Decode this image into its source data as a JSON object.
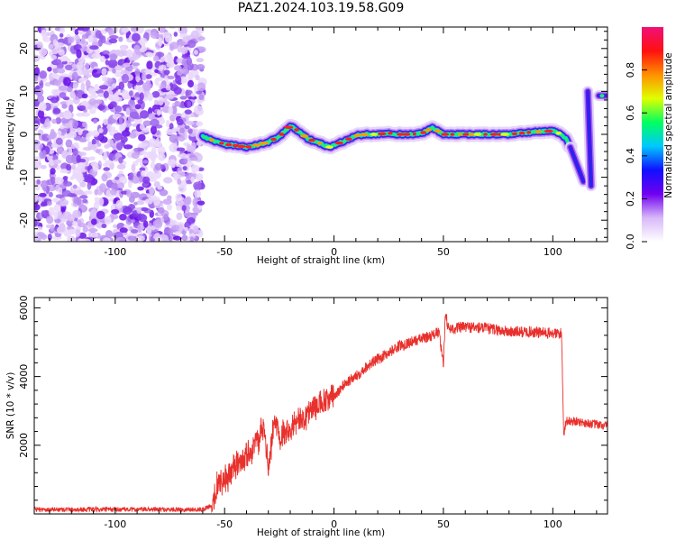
{
  "title": "PAZ1.2024.103.19.58.G09",
  "chart_data": [
    {
      "type": "heatmap",
      "xlabel": "Height of straight line (km)",
      "ylabel": "Frequency (Hz)",
      "xlim": [
        -137,
        125
      ],
      "ylim": [
        -25,
        25
      ],
      "x_ticks": [
        -100,
        -50,
        0,
        50,
        100
      ],
      "y_ticks": [
        -20,
        -10,
        0,
        10,
        20
      ],
      "colorbar": {
        "label": "Normalized spectral amplitude",
        "range": [
          0,
          1
        ],
        "ticks": [
          "0.0",
          "0.2",
          "0.4",
          "0.6",
          "0.8"
        ],
        "colors": [
          "#ffffff",
          "#d8b8f8",
          "#7000f0",
          "#1010ff",
          "#00c8ff",
          "#00ff60",
          "#e0ff00",
          "#ff9000",
          "#ff1010",
          "#f01078"
        ]
      },
      "noise_region_x": [
        -137,
        -60
      ],
      "ridge": {
        "x": [
          -60,
          -55,
          -50,
          -45,
          -40,
          -35,
          -30,
          -25,
          -20,
          -17,
          -12,
          -8,
          -5,
          -2,
          0,
          5,
          10,
          15,
          20,
          25,
          30,
          35,
          40,
          45,
          50,
          60,
          70,
          80,
          90,
          100,
          104,
          106,
          108
        ],
        "y": [
          -0.5,
          -1.5,
          -2.3,
          -2.6,
          -3,
          -2.5,
          -1.8,
          -0.5,
          2,
          1,
          -1,
          -1.8,
          -2.4,
          -3,
          -2.5,
          -1.5,
          -0.3,
          0,
          0,
          0.3,
          0,
          0,
          0.2,
          1.5,
          0,
          0,
          0,
          0,
          0.5,
          0.8,
          0,
          -1,
          -3
        ]
      },
      "edge_segments": [
        {
          "x": [
            108,
            114
          ],
          "y": [
            -3,
            -11
          ]
        },
        {
          "x": [
            116,
            117.5
          ],
          "y": [
            10,
            -12
          ]
        },
        {
          "x": [
            121,
            124
          ],
          "y": [
            9,
            9
          ]
        }
      ]
    },
    {
      "type": "line",
      "xlabel": "Height of straight line (km)",
      "ylabel": "SNR (10 * v/v)",
      "xlim": [
        -137,
        125
      ],
      "ylim": [
        0,
        6300
      ],
      "x_ticks": [
        -100,
        -50,
        0,
        50,
        100
      ],
      "y_ticks": [
        2000,
        4000,
        6000
      ],
      "color": "#e8302c",
      "series": [
        {
          "x": [
            -137,
            -60,
            -56,
            -54,
            -52,
            -50,
            -45,
            -40,
            -35,
            -32,
            -30,
            -27,
            -25,
            -20,
            -15,
            -10,
            -5,
            0,
            5,
            10,
            15,
            20,
            25,
            30,
            35,
            40,
            45,
            48,
            50,
            51,
            52,
            55,
            60,
            70,
            80,
            90,
            100,
            104,
            105,
            106,
            110,
            115,
            120,
            125
          ],
          "y": [
            130,
            130,
            250,
            700,
            1000,
            950,
            1400,
            1700,
            2100,
            2500,
            1300,
            2800,
            2300,
            2550,
            2700,
            3100,
            3200,
            3400,
            3800,
            4000,
            4300,
            4500,
            4700,
            4900,
            5000,
            5100,
            5200,
            5300,
            4300,
            6000,
            5400,
            5400,
            5450,
            5400,
            5300,
            5300,
            5250,
            5250,
            2300,
            2700,
            2700,
            2650,
            2600,
            2550
          ]
        }
      ]
    }
  ]
}
